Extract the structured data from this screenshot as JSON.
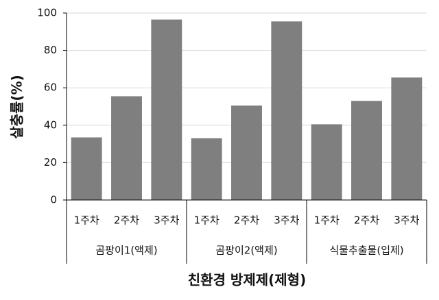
{
  "chart_data": {
    "type": "bar",
    "x_label": "친환경 방제제(제형)",
    "y_label": "살충률(%)",
    "categories": [
      "1주차",
      "2주차",
      "3주차",
      "1주차",
      "2주차",
      "3주차",
      "1주차",
      "2주차",
      "3주차"
    ],
    "groups": [
      "곰팡이1(액제)",
      "곰팡이2(액제)",
      "식물추출물(입제)"
    ],
    "values": [
      33.5,
      55.5,
      96.5,
      33,
      50.5,
      95.5,
      40.5,
      53,
      65.5
    ],
    "color": "#7f7f7f",
    "ylim": [
      0,
      100
    ],
    "yticks": [
      0,
      20,
      40,
      60,
      80,
      100
    ],
    "grid": true
  }
}
